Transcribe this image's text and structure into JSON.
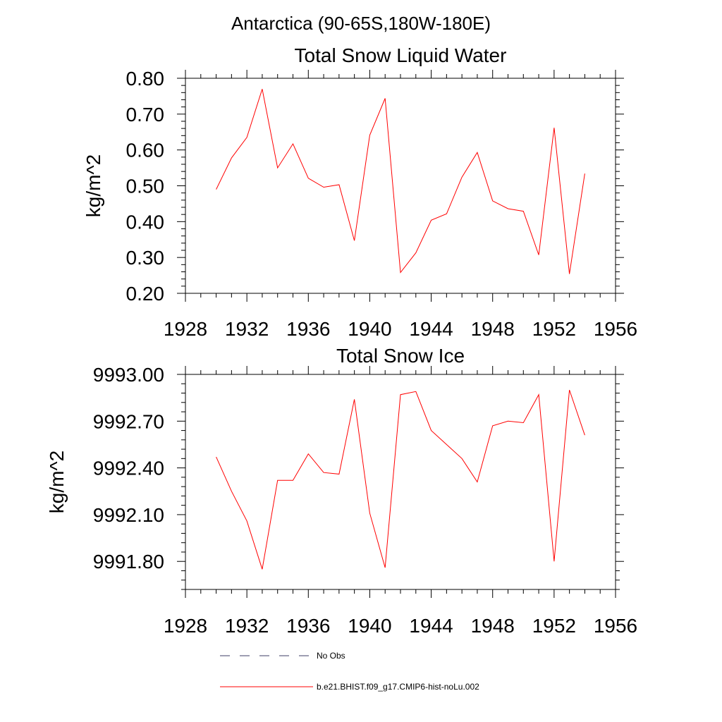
{
  "page_title": "Antarctica (90-65S,180W-180E)",
  "chart_data": [
    {
      "type": "line",
      "title": "Total Snow Liquid Water",
      "xlabel": "",
      "ylabel": "kg/m^2",
      "xlim": [
        1928,
        1956
      ],
      "ylim": [
        0.2,
        0.8
      ],
      "x_ticks": [
        "1928",
        "1932",
        "1936",
        "1940",
        "1944",
        "1948",
        "1952",
        "1956"
      ],
      "y_ticks": [
        "0.20",
        "0.30",
        "0.40",
        "0.50",
        "0.60",
        "0.70",
        "0.80"
      ],
      "x": [
        1930,
        1931,
        1932,
        1933,
        1934,
        1935,
        1936,
        1937,
        1938,
        1939,
        1940,
        1941,
        1942,
        1943,
        1944,
        1945,
        1946,
        1947,
        1948,
        1949,
        1950,
        1951,
        1952,
        1953,
        1954
      ],
      "series": [
        {
          "name": "b.e21.BHIST.f09_g17.CMIP6-hist-noLu.002",
          "color": "#ff0000",
          "values": [
            0.49,
            0.578,
            0.635,
            0.77,
            0.55,
            0.617,
            0.521,
            0.496,
            0.503,
            0.347,
            0.641,
            0.744,
            0.258,
            0.313,
            0.404,
            0.422,
            0.524,
            0.593,
            0.458,
            0.436,
            0.429,
            0.307,
            0.662,
            0.254,
            0.534
          ]
        }
      ],
      "grid": false
    },
    {
      "type": "line",
      "title": "Total Snow Ice",
      "xlabel": "",
      "ylabel": "kg/m^2",
      "xlim": [
        1928,
        1956
      ],
      "ylim": [
        9991.62,
        9993.0
      ],
      "x_ticks": [
        "1928",
        "1932",
        "1936",
        "1940",
        "1944",
        "1948",
        "1952",
        "1956"
      ],
      "y_ticks": [
        "9991.80",
        "9992.10",
        "9992.40",
        "9992.70",
        "9993.00"
      ],
      "x": [
        1930,
        1931,
        1932,
        1933,
        1934,
        1935,
        1936,
        1937,
        1938,
        1939,
        1940,
        1941,
        1942,
        1943,
        1944,
        1945,
        1946,
        1947,
        1948,
        1949,
        1950,
        1951,
        1952,
        1953,
        1954
      ],
      "series": [
        {
          "name": "b.e21.BHIST.f09_g17.CMIP6-hist-noLu.002",
          "color": "#ff0000",
          "values": [
            9992.47,
            9992.25,
            9992.06,
            9991.75,
            9992.32,
            9992.32,
            9992.49,
            9992.37,
            9992.36,
            9992.84,
            9992.11,
            9991.76,
            9992.87,
            9992.89,
            9992.64,
            9992.55,
            9992.46,
            9992.31,
            9992.67,
            9992.7,
            9992.69,
            9992.87,
            9991.8,
            9992.9,
            9992.61
          ]
        }
      ],
      "grid": false
    }
  ],
  "legend": {
    "placement": "bottom",
    "items": [
      {
        "label": "No Obs",
        "color": "#3c3c64",
        "dash": "dashed"
      },
      {
        "label": "b.e21.BHIST.f09_g17.CMIP6-hist-noLu.002",
        "color": "#ff0000",
        "dash": "solid"
      }
    ]
  }
}
